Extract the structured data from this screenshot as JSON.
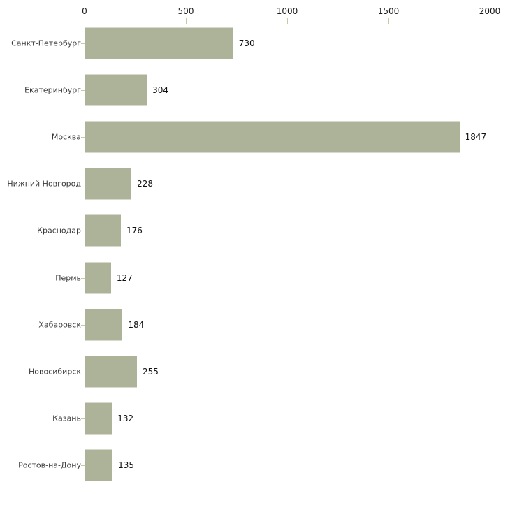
{
  "chart_data": {
    "type": "bar",
    "orientation": "horizontal",
    "title": "",
    "xlabel": "",
    "ylabel": "",
    "categories": [
      "Санкт-Петербург",
      "Екатеринбург",
      "Москва",
      "Нижний Новгород",
      "Краснодар",
      "Пермь",
      "Хабаровск",
      "Новосибирск",
      "Казань",
      "Ростов-на-Дону"
    ],
    "values": [
      730,
      304,
      1847,
      228,
      176,
      127,
      184,
      255,
      132,
      135
    ],
    "value_labels": [
      "730",
      "304",
      "1847",
      "228",
      "176",
      "127",
      "184",
      "255",
      "132",
      "135"
    ],
    "x_ticks": [
      0,
      500,
      1000,
      1500,
      2000
    ],
    "x_tick_labels": [
      "0",
      "500",
      "1000",
      "1500",
      "2000"
    ],
    "xlim": [
      0,
      2000
    ],
    "grid": false,
    "legend": null,
    "axis_position": "top",
    "colors": {
      "bar_fill": "#adb399",
      "axis_line": "#c6c6c6",
      "tick_mark": "#c6c9a4",
      "category_text": "#3a3a3a",
      "value_text": "#111111",
      "tick_text": "#1a1a1a",
      "background": "#ffffff"
    }
  }
}
